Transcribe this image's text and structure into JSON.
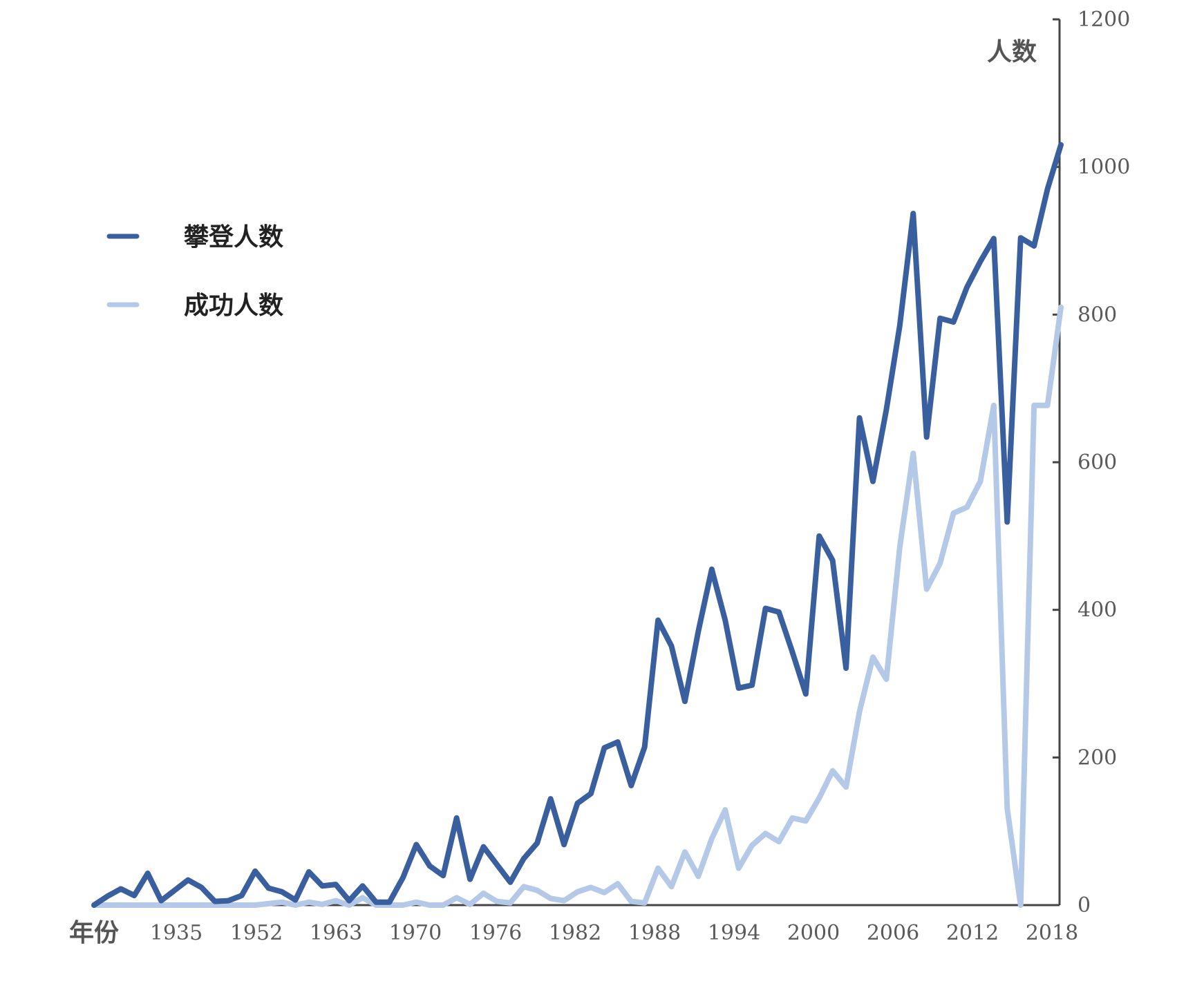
{
  "chart_data": {
    "type": "line",
    "xlabel": "年份",
    "ylabel": "人数",
    "x_tick_labels": [
      "1935",
      "1952",
      "1963",
      "1970",
      "1976",
      "1982",
      "1988",
      "1994",
      "2000",
      "2006",
      "2012",
      "2018"
    ],
    "y_ticks": [
      0,
      200,
      400,
      600,
      800,
      1000,
      1200
    ],
    "ylim": [
      0,
      1200
    ],
    "y_axis_position": "right",
    "grid": false,
    "legend_position": "left",
    "colors": {
      "climbers": "#3a5f9e",
      "summits": "#b4c8e8",
      "axis": "#444444"
    },
    "series": [
      {
        "name": "攀登人数",
        "key": "climbers",
        "values": [
          0,
          12,
          22,
          13,
          43,
          6,
          20,
          34,
          24,
          5,
          6,
          13,
          46,
          23,
          18,
          7,
          45,
          26,
          28,
          6,
          26,
          4,
          4,
          37,
          82,
          53,
          40,
          118,
          35,
          79,
          55,
          31,
          63,
          84,
          144,
          82,
          138,
          151,
          213,
          221,
          162,
          214,
          386,
          351,
          276,
          371,
          455,
          386,
          294,
          298,
          402,
          397,
          343,
          286,
          500,
          467,
          321,
          660,
          574,
          671,
          785,
          937,
          634,
          795,
          790,
          837,
          872,
          903,
          519,
          904,
          893,
          970,
          1030
        ]
      },
      {
        "name": "成功人数",
        "key": "summits",
        "values": [
          0,
          0,
          0,
          0,
          0,
          0,
          0,
          0,
          0,
          0,
          0,
          0,
          0,
          2,
          4,
          0,
          4,
          1,
          6,
          0,
          10,
          0,
          0,
          0,
          4,
          0,
          0,
          10,
          1,
          16,
          5,
          3,
          25,
          20,
          9,
          6,
          18,
          24,
          17,
          29,
          5,
          3,
          50,
          25,
          72,
          39,
          90,
          129,
          50,
          81,
          97,
          86,
          118,
          114,
          145,
          182,
          160,
          262,
          336,
          306,
          485,
          612,
          428,
          463,
          531,
          539,
          574,
          677,
          131,
          0,
          677,
          677,
          810
        ]
      }
    ]
  }
}
